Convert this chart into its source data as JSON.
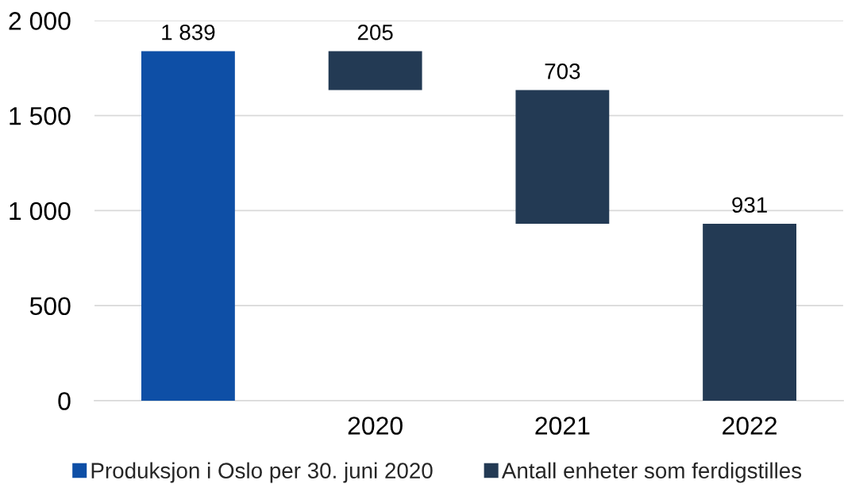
{
  "chart_data": {
    "type": "bar",
    "categories": [
      null,
      "2020",
      "2021",
      "2022"
    ],
    "series": [
      {
        "name": "Produksjon i Oslo per 30. juni 2020",
        "color": "#0e4fa6",
        "values": [
          1839,
          null,
          null,
          null
        ],
        "base": [
          0,
          null,
          null,
          null
        ],
        "value_labels": [
          "1 839",
          null,
          null,
          null
        ]
      },
      {
        "name": "Antall enheter som ferdigstilles",
        "color": "#233a54",
        "values": [
          null,
          205,
          703,
          931
        ],
        "base": [
          null,
          1634,
          931,
          0
        ],
        "value_labels": [
          null,
          "205",
          "703",
          "931"
        ]
      }
    ],
    "ylim": [
      0,
      2000
    ],
    "yticks": [
      0,
      500,
      {
        "value": 1000,
        "label": "1 000"
      },
      {
        "value": 1500,
        "label": "1 500"
      },
      {
        "value": 2000,
        "label": "2 000"
      }
    ],
    "grid": "y",
    "legend": "bottom"
  }
}
